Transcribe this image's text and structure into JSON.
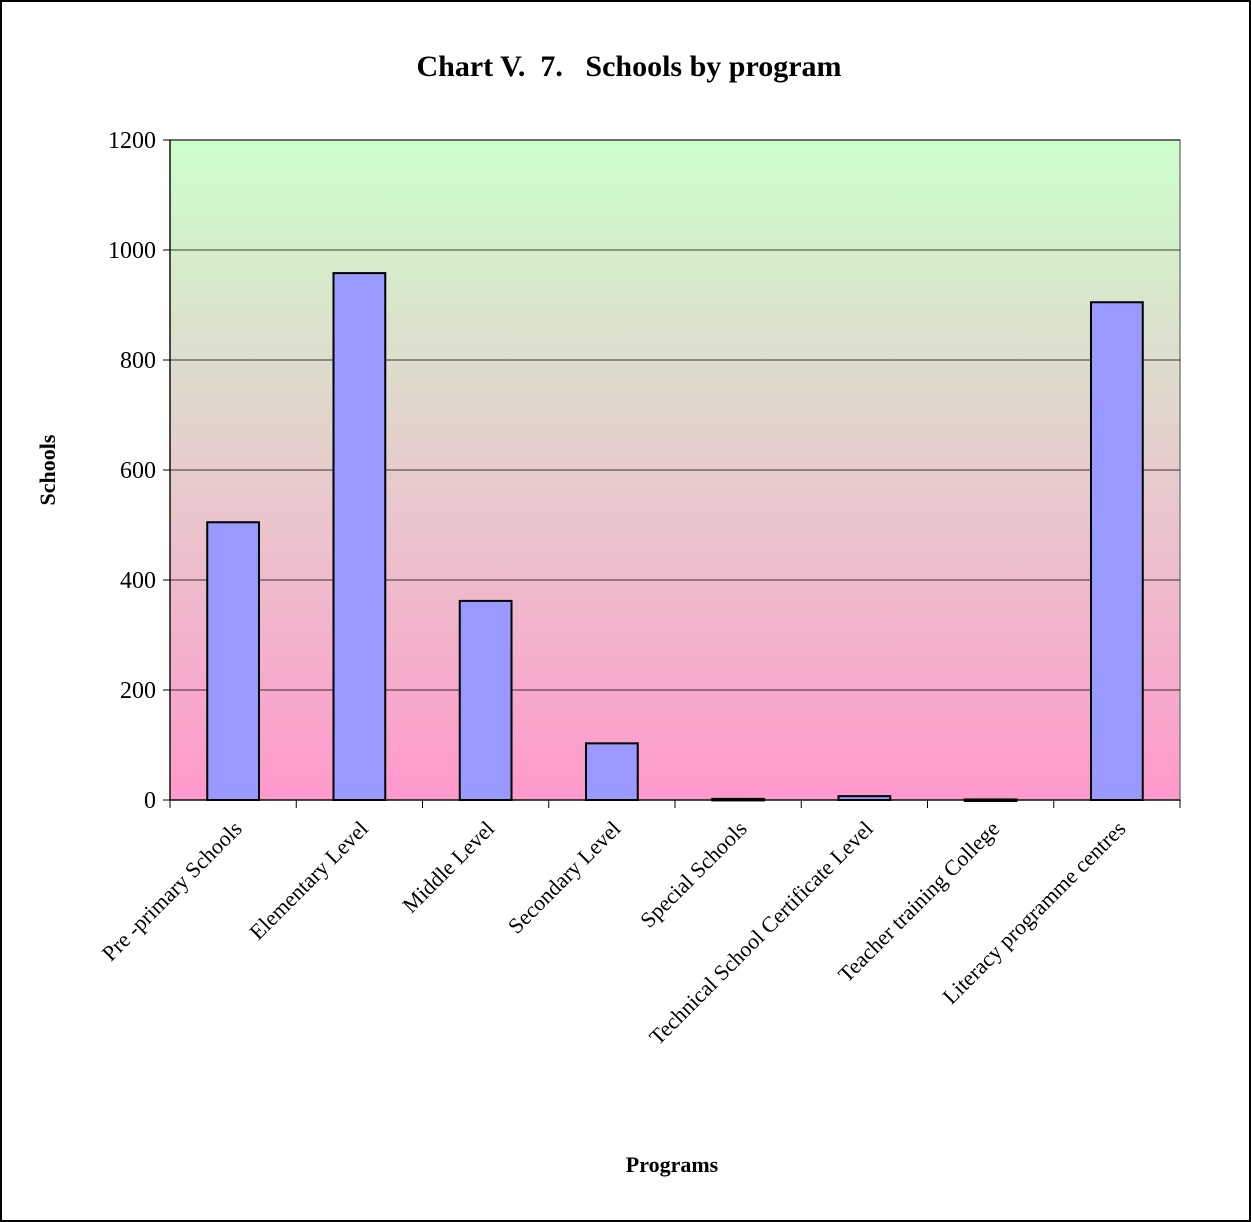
{
  "chart_data": {
    "type": "bar",
    "title": "Chart V.  7.   Schools by program",
    "xlabel": "Programs",
    "ylabel": "Schools",
    "categories": [
      "Pre -primary Schools",
      "Elementary Level",
      "Middle Level",
      "Secondary Level",
      "Special Schools",
      "Technical School Certificate Level",
      "Teacher training College",
      "Literacy programme centres"
    ],
    "values": [
      505,
      958,
      362,
      103,
      2,
      7,
      1,
      905
    ],
    "ylim": [
      0,
      1200
    ],
    "yticks": [
      "0",
      "200",
      "400",
      "600",
      "800",
      "1000",
      "1200"
    ],
    "grid": true,
    "legend": "none",
    "colors": {
      "bar_fill": "#9999ff",
      "bar_stroke": "#000000",
      "plot_bg_top": "#ccffcc",
      "plot_bg_bottom": "#ff99cc",
      "gridline": "#000000"
    }
  }
}
